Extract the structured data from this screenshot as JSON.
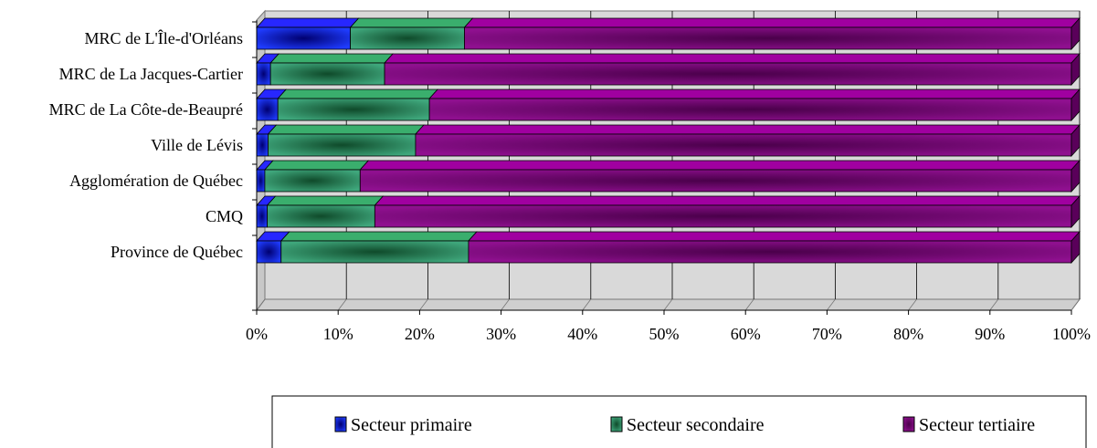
{
  "chart_data": {
    "type": "bar",
    "orientation": "horizontal",
    "stacked": "percent",
    "categories": [
      "MRC de L'Île-d'Orléans",
      "MRC de La Jacques-Cartier",
      "MRC de La Côte-de-Beaupré",
      "Ville de Lévis",
      "Agglomération de Québec",
      "CMQ",
      "Province de Québec"
    ],
    "series": [
      {
        "name": "Secteur primaire",
        "values": [
          11.5,
          1.7,
          2.6,
          1.4,
          1.0,
          1.3,
          3.0
        ],
        "color": "#1f1fff"
      },
      {
        "name": "Secteur secondaire",
        "values": [
          14.0,
          14.0,
          18.6,
          18.1,
          11.7,
          13.2,
          23.0
        ],
        "color": "#2e8b57"
      },
      {
        "name": "Secteur tertiaire",
        "values": [
          74.5,
          84.3,
          78.8,
          80.5,
          87.3,
          85.5,
          74.0
        ],
        "color": "#800080"
      }
    ],
    "x_ticks": [
      "0%",
      "10%",
      "20%",
      "30%",
      "40%",
      "50%",
      "60%",
      "70%",
      "80%",
      "90%",
      "100%"
    ],
    "xlim": [
      0,
      100
    ],
    "grid": true,
    "legend_position": "bottom-right"
  }
}
